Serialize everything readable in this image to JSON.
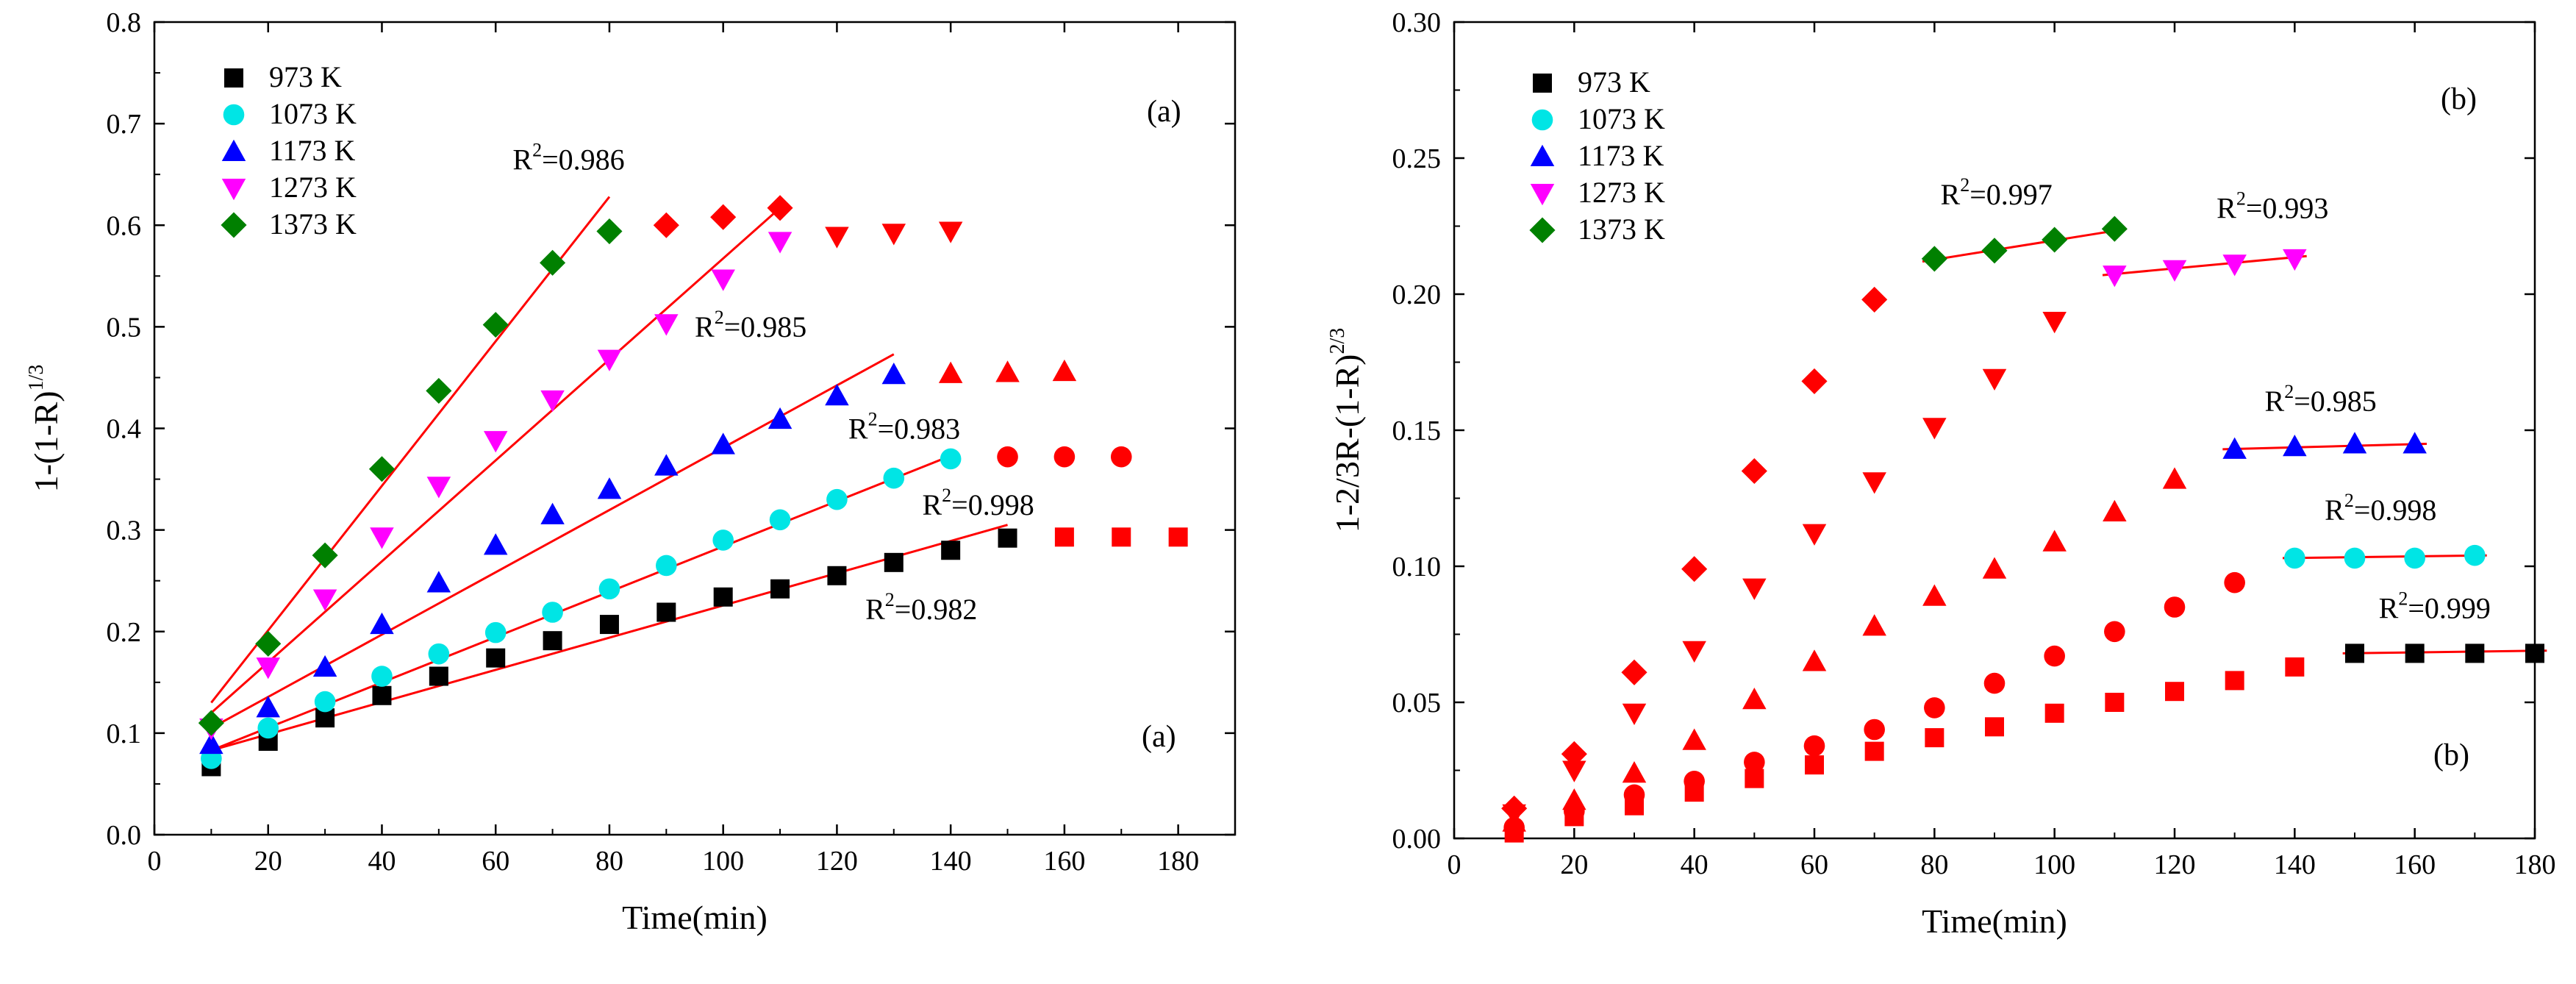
{
  "chart_data": [
    {
      "type": "scatter",
      "panel": "a",
      "xlabel": "Time(min)",
      "ylabel": "1-(1-R)",
      "ylabel_exp": "1/3",
      "xlim": [
        0,
        190
      ],
      "ylim": [
        0,
        0.8
      ],
      "xticks": [
        0,
        20,
        40,
        60,
        80,
        100,
        120,
        140,
        160,
        180
      ],
      "xtick_labels": [
        "0",
        "20",
        "40",
        "60",
        "80",
        "100",
        "120",
        "140",
        "160",
        "180"
      ],
      "yticks": [
        0.0,
        0.1,
        0.2,
        0.3,
        0.4,
        0.5,
        0.6,
        0.7,
        0.8
      ],
      "ytick_labels": [
        "0.0",
        "0.1",
        "0.2",
        "0.3",
        "0.4",
        "0.5",
        "0.6",
        "0.7",
        "0.8"
      ],
      "panel_labels": [
        "(a)",
        "(a)"
      ],
      "legend_position": "top-left",
      "series": [
        {
          "name": "973 K",
          "marker": "square",
          "color": "#000000",
          "x": [
            10,
            20,
            30,
            40,
            50,
            60,
            70,
            80,
            90,
            100,
            110,
            120,
            130,
            140,
            150
          ],
          "y": [
            0.067,
            0.092,
            0.115,
            0.137,
            0.156,
            0.174,
            0.191,
            0.207,
            0.219,
            0.234,
            0.242,
            0.255,
            0.268,
            0.28,
            0.292
          ]
        },
        {
          "name": "1073 K",
          "marker": "circle",
          "color": "#00e5e5",
          "x": [
            10,
            20,
            30,
            40,
            50,
            60,
            70,
            80,
            90,
            100,
            110,
            120,
            130,
            140
          ],
          "y": [
            0.075,
            0.105,
            0.131,
            0.156,
            0.178,
            0.199,
            0.219,
            0.242,
            0.265,
            0.29,
            0.31,
            0.33,
            0.351,
            0.37
          ]
        },
        {
          "name": "1173 K",
          "marker": "triangle-up",
          "color": "#0000ff",
          "x": [
            10,
            20,
            30,
            40,
            50,
            60,
            70,
            80,
            90,
            100,
            110,
            120,
            130
          ],
          "y": [
            0.089,
            0.125,
            0.165,
            0.207,
            0.248,
            0.285,
            0.315,
            0.34,
            0.363,
            0.384,
            0.409,
            0.432,
            0.453
          ]
        },
        {
          "name": "1273 K",
          "marker": "triangle-down",
          "color": "#ff00ff",
          "x": [
            10,
            20,
            30,
            40,
            50,
            60,
            70,
            80,
            90,
            100,
            110
          ],
          "y": [
            0.105,
            0.165,
            0.232,
            0.293,
            0.343,
            0.388,
            0.428,
            0.468,
            0.503,
            0.547,
            0.584
          ]
        },
        {
          "name": "1373 K",
          "marker": "diamond",
          "color": "#008000",
          "x": [
            10,
            20,
            30,
            40,
            50,
            60,
            70,
            80
          ],
          "y": [
            0.11,
            0.188,
            0.275,
            0.36,
            0.437,
            0.502,
            0.563,
            0.594
          ]
        }
      ],
      "plateau_points": [
        {
          "marker": "square",
          "color": "#ff0000",
          "x": [
            160,
            170,
            180
          ],
          "y": [
            0.293,
            0.293,
            0.293
          ]
        },
        {
          "marker": "circle",
          "color": "#ff0000",
          "x": [
            150,
            160,
            170
          ],
          "y": [
            0.372,
            0.372,
            0.372
          ]
        },
        {
          "marker": "triangle-up",
          "color": "#ff0000",
          "x": [
            140,
            150,
            160
          ],
          "y": [
            0.454,
            0.455,
            0.456
          ]
        },
        {
          "marker": "triangle-down",
          "color": "#ff0000",
          "x": [
            120,
            130,
            140
          ],
          "y": [
            0.589,
            0.592,
            0.594
          ]
        },
        {
          "marker": "diamond",
          "color": "#ff0000",
          "x": [
            90,
            100,
            110
          ],
          "y": [
            0.6,
            0.608,
            0.617
          ]
        }
      ],
      "fit_color": "#ff0000",
      "fit_lines": [
        {
          "x": [
            10,
            150
          ],
          "y": [
            0.083,
            0.305
          ]
        },
        {
          "x": [
            10,
            140
          ],
          "y": [
            0.083,
            0.373
          ]
        },
        {
          "x": [
            10,
            130
          ],
          "y": [
            0.105,
            0.473
          ]
        },
        {
          "x": [
            10,
            110
          ],
          "y": [
            0.12,
            0.617
          ]
        },
        {
          "x": [
            10,
            80
          ],
          "y": [
            0.13,
            0.628
          ]
        }
      ],
      "annotations": [
        {
          "text": "R",
          "sup": "2",
          "value": "=0.986",
          "x": 63,
          "y": 0.655
        },
        {
          "text": "R",
          "sup": "2",
          "value": "=0.985",
          "x": 95,
          "y": 0.49
        },
        {
          "text": "R",
          "sup": "2",
          "value": "=0.983",
          "x": 122,
          "y": 0.39
        },
        {
          "text": "R",
          "sup": "2",
          "value": "=0.998",
          "x": 135,
          "y": 0.315
        },
        {
          "text": "R",
          "sup": "2",
          "value": "=0.982",
          "x": 125,
          "y": 0.212
        }
      ]
    },
    {
      "type": "scatter",
      "panel": "b",
      "xlabel": "Time(min)",
      "ylabel": "1-2/3R-(1-R)",
      "ylabel_exp": "2/3",
      "xlim": [
        0,
        180
      ],
      "ylim": [
        0,
        0.3
      ],
      "xticks": [
        0,
        20,
        40,
        60,
        80,
        100,
        120,
        140,
        160,
        180
      ],
      "xtick_labels": [
        "0",
        "20",
        "40",
        "60",
        "80",
        "100",
        "120",
        "140",
        "160",
        "180"
      ],
      "yticks": [
        0.0,
        0.05,
        0.1,
        0.15,
        0.2,
        0.25,
        0.3
      ],
      "ytick_labels": [
        "0.00",
        "0.05",
        "0.10",
        "0.15",
        "0.20",
        "0.25",
        "0.30"
      ],
      "panel_labels": [
        "(b)",
        "(b)"
      ],
      "legend_position": "top-left",
      "series": [
        {
          "name": "973 K",
          "marker": "square",
          "color": "#000000",
          "x": [
            150,
            160,
            170,
            180
          ],
          "y": [
            0.068,
            0.068,
            0.068,
            0.068
          ]
        },
        {
          "name": "1073 K",
          "marker": "circle",
          "color": "#00e5e5",
          "x": [
            140,
            150,
            160,
            170
          ],
          "y": [
            0.103,
            0.103,
            0.103,
            0.104
          ]
        },
        {
          "name": "1173 K",
          "marker": "triangle-up",
          "color": "#0000ff",
          "x": [
            130,
            140,
            150,
            160
          ],
          "y": [
            0.143,
            0.144,
            0.145,
            0.145
          ]
        },
        {
          "name": "1273 K",
          "marker": "triangle-down",
          "color": "#ff00ff",
          "x": [
            110,
            120,
            130,
            140
          ],
          "y": [
            0.207,
            0.209,
            0.211,
            0.213
          ]
        },
        {
          "name": "1373 K",
          "marker": "diamond",
          "color": "#008000",
          "x": [
            80,
            90,
            100,
            110
          ],
          "y": [
            0.213,
            0.216,
            0.22,
            0.224
          ]
        }
      ],
      "early_points": [
        {
          "marker": "square",
          "color": "#ff0000",
          "x": [
            10,
            20,
            30,
            40,
            50,
            60,
            70,
            80,
            90,
            100,
            110,
            120,
            130,
            140
          ],
          "y": [
            0.002,
            0.008,
            0.012,
            0.017,
            0.022,
            0.027,
            0.032,
            0.037,
            0.041,
            0.046,
            0.05,
            0.054,
            0.058,
            0.063
          ]
        },
        {
          "marker": "circle",
          "color": "#ff0000",
          "x": [
            10,
            20,
            30,
            40,
            50,
            60,
            70,
            80,
            90,
            100,
            110,
            120,
            130
          ],
          "y": [
            0.004,
            0.01,
            0.016,
            0.021,
            0.028,
            0.034,
            0.04,
            0.048,
            0.057,
            0.067,
            0.076,
            0.085,
            0.094
          ]
        },
        {
          "marker": "triangle-up",
          "color": "#ff0000",
          "x": [
            10,
            20,
            30,
            40,
            50,
            60,
            70,
            80,
            90,
            100,
            110,
            120
          ],
          "y": [
            0.006,
            0.014,
            0.024,
            0.036,
            0.051,
            0.065,
            0.078,
            0.089,
            0.099,
            0.109,
            0.12,
            0.132
          ]
        },
        {
          "marker": "triangle-down",
          "color": "#ff0000",
          "x": [
            10,
            20,
            30,
            40,
            50,
            60,
            70,
            80,
            90,
            100
          ],
          "y": [
            0.009,
            0.025,
            0.046,
            0.069,
            0.092,
            0.112,
            0.131,
            0.151,
            0.169,
            0.19
          ]
        },
        {
          "marker": "diamond",
          "color": "#ff0000",
          "x": [
            10,
            20,
            30,
            40,
            50,
            60,
            70
          ],
          "y": [
            0.011,
            0.031,
            0.061,
            0.099,
            0.135,
            0.168,
            0.198
          ]
        }
      ],
      "fit_color": "#ff0000",
      "fit_lines": [
        {
          "x": [
            148,
            182
          ],
          "y": [
            0.068,
            0.069
          ]
        },
        {
          "x": [
            138,
            172
          ],
          "y": [
            0.103,
            0.104
          ]
        },
        {
          "x": [
            128,
            162
          ],
          "y": [
            0.143,
            0.145
          ]
        },
        {
          "x": [
            108,
            142
          ],
          "y": [
            0.207,
            0.214
          ]
        },
        {
          "x": [
            78,
            112
          ],
          "y": [
            0.212,
            0.224
          ]
        }
      ],
      "annotations": [
        {
          "text": "R",
          "sup": "2",
          "value": "=0.997",
          "x": 81,
          "y": 0.233
        },
        {
          "text": "R",
          "sup": "2",
          "value": "=0.993",
          "x": 127,
          "y": 0.228
        },
        {
          "text": "R",
          "sup": "2",
          "value": "=0.985",
          "x": 135,
          "y": 0.157
        },
        {
          "text": "R",
          "sup": "2",
          "value": "=0.998",
          "x": 145,
          "y": 0.117
        },
        {
          "text": "R",
          "sup": "2",
          "value": "=0.999",
          "x": 154,
          "y": 0.081
        }
      ]
    }
  ]
}
